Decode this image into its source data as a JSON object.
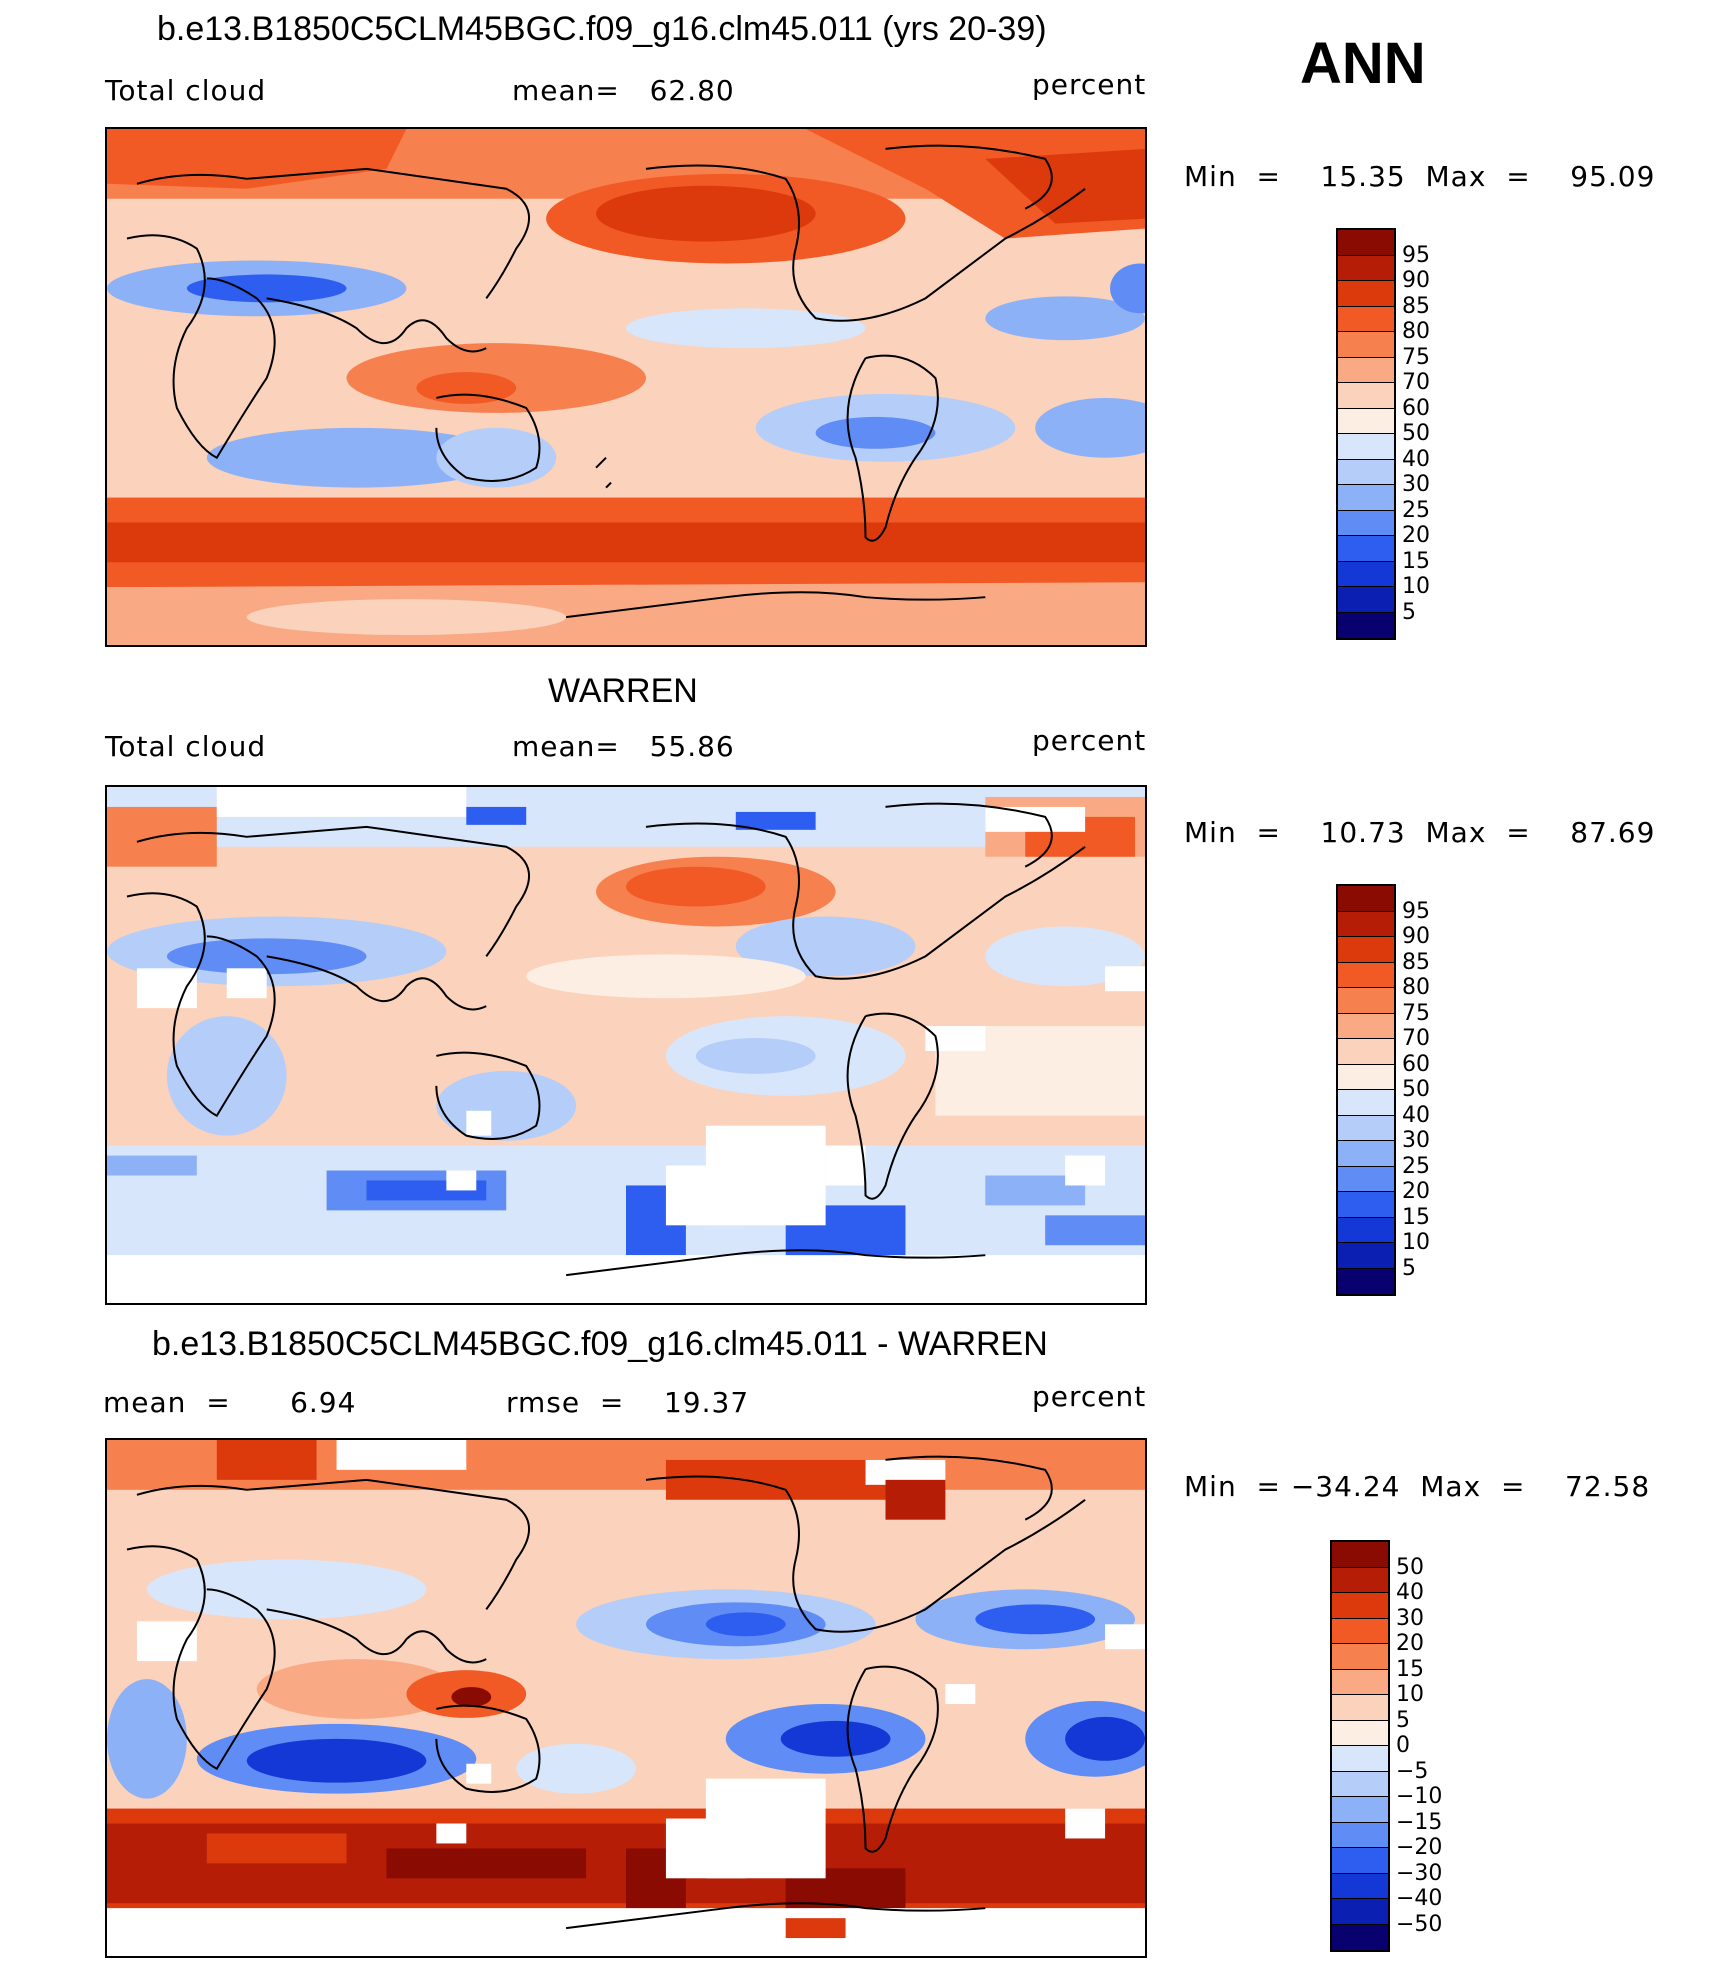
{
  "season": "ANN",
  "colors": {
    "abs": [
      "#08006e",
      "#0b1fb3",
      "#1438d6",
      "#2e5ef0",
      "#5f8cf5",
      "#8db1f7",
      "#b5cdf9",
      "#d8e6fb",
      "#fdeee3",
      "#fbd2bb",
      "#f9a984",
      "#f7804f",
      "#f25a25",
      "#dc3a0d",
      "#b51d06",
      "#8a0b02"
    ],
    "diff": [
      "#08006e",
      "#0b1fb3",
      "#1438d6",
      "#2e5ef0",
      "#5f8cf5",
      "#8db1f7",
      "#b5cdf9",
      "#d8e6fb",
      "#fdeee3",
      "#fbd2bb",
      "#f9a984",
      "#f7804f",
      "#f25a25",
      "#dc3a0d",
      "#b51d06",
      "#8a0b02"
    ]
  },
  "panels": [
    {
      "title": "b.e13.B1850C5CLM45BGC.f09_g16.clm45.011 (yrs 20-39)",
      "left_label": "Total cloud",
      "mid_label": "mean=   62.80",
      "units": "percent",
      "minmax": "Min  =    15.35  Max  =    95.09",
      "levels": [
        "95",
        "90",
        "85",
        "80",
        "75",
        "70",
        "60",
        "50",
        "40",
        "30",
        "25",
        "20",
        "15",
        "10",
        "5"
      ]
    },
    {
      "title": "WARREN",
      "left_label": "Total cloud",
      "mid_label": "mean=   55.86",
      "units": "percent",
      "minmax": "Min  =    10.73  Max  =    87.69",
      "levels": [
        "95",
        "90",
        "85",
        "80",
        "75",
        "70",
        "60",
        "50",
        "40",
        "30",
        "25",
        "20",
        "15",
        "10",
        "5"
      ]
    },
    {
      "title": "b.e13.B1850C5CLM45BGC.f09_g16.clm45.011 - WARREN",
      "left_label": "mean  =      6.94",
      "mid_label": "rmse  =    19.37",
      "units": "percent",
      "minmax": "Min  = −34.24  Max  =    72.58",
      "levels": [
        "50",
        "40",
        "30",
        "20",
        "15",
        "10",
        "5",
        "0",
        "−5",
        "−10",
        "−15",
        "−20",
        "−30",
        "−40",
        "−50"
      ]
    }
  ]
}
